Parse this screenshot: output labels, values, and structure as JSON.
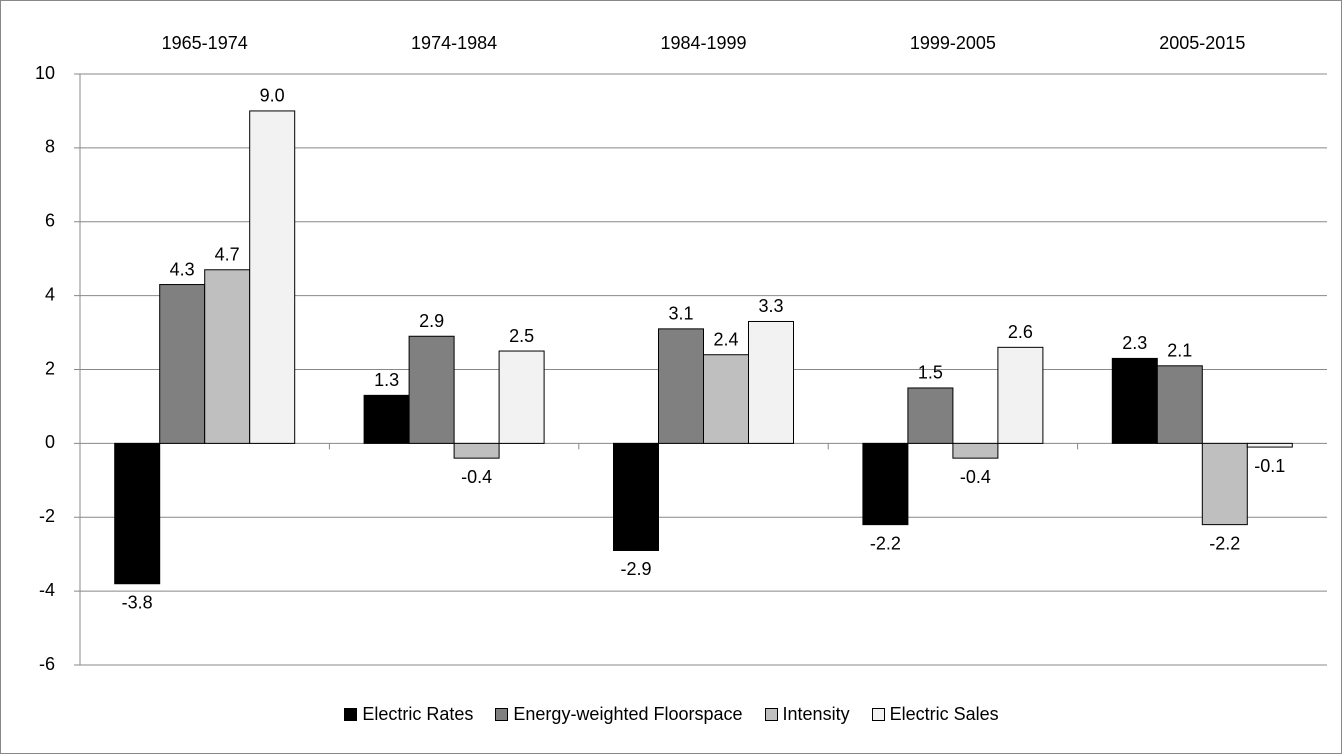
{
  "chart_data": {
    "type": "bar",
    "categories": [
      "1965-1974",
      "1974-1984",
      "1984-1999",
      "1999-2005",
      "2005-2015"
    ],
    "series": [
      {
        "name": "Electric Rates",
        "color": "#000000",
        "values": [
          -3.8,
          1.3,
          -2.9,
          -2.2,
          2.3
        ],
        "value_labels": [
          "-3.8",
          "1.3",
          "-2.9",
          "-2.2",
          "2.3"
        ]
      },
      {
        "name": "Energy-weighted Floorspace",
        "color": "#808080",
        "values": [
          4.3,
          2.9,
          3.1,
          1.5,
          2.1
        ],
        "value_labels": [
          "4.3",
          "2.9",
          "3.1",
          "1.5",
          "2.1"
        ]
      },
      {
        "name": "Intensity",
        "color": "#bfbfbf",
        "values": [
          4.7,
          -0.4,
          2.4,
          -0.4,
          -2.2
        ],
        "value_labels": [
          "4.7",
          "-0.4",
          "2.4",
          "-0.4",
          "-2.2"
        ]
      },
      {
        "name": "Electric Sales",
        "color": "#f2f2f2",
        "values": [
          9.0,
          2.5,
          3.3,
          2.6,
          -0.1
        ],
        "value_labels": [
          "9.0",
          "2.5",
          "3.3",
          "2.6",
          "-0.1"
        ]
      }
    ],
    "ylim": [
      -6,
      10
    ],
    "yticks": [
      -6,
      -4,
      -2,
      0,
      2,
      4,
      6,
      8,
      10
    ],
    "grid": true,
    "legend": "bottom"
  }
}
